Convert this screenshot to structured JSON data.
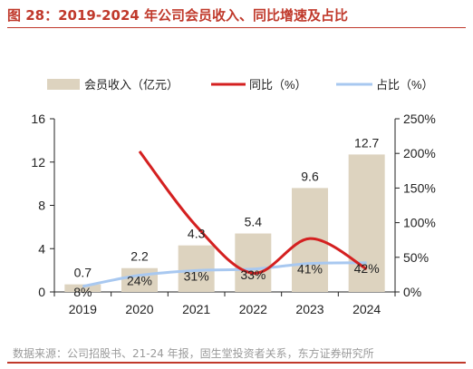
{
  "header": {
    "title": "图 28：2019-2024 年公司会员收入、同比增速及占比"
  },
  "footer": {
    "source": "数据来源：公司招股书、21-24 年报，固生堂投资者关系，东方证券研究所"
  },
  "colors": {
    "title": "#c0392b",
    "bars": "#ddd3bf",
    "yoy_line": "#d42020",
    "share_line": "#a8c8f0"
  },
  "chart_data": {
    "type": "bar",
    "categories": [
      "2019",
      "2020",
      "2021",
      "2022",
      "2023",
      "2024"
    ],
    "series": [
      {
        "name": "会员收入（亿元）",
        "type": "bar",
        "axis": "left",
        "values": [
          0.7,
          2.2,
          4.3,
          5.4,
          9.6,
          12.7
        ],
        "labels": [
          "0.7",
          "2.2",
          "4.3",
          "5.4",
          "9.6",
          "12.7"
        ]
      },
      {
        "name": "同比（%）",
        "type": "line",
        "axis": "right",
        "values": [
          null,
          203,
          95,
          27,
          77,
          33
        ]
      },
      {
        "name": "占比（%）",
        "type": "line",
        "axis": "right",
        "values": [
          8,
          24,
          31,
          33,
          41,
          42
        ],
        "labels": [
          "8%",
          "24%",
          "31%",
          "33%",
          "41%",
          "42%"
        ]
      }
    ],
    "y_left": {
      "min": 0,
      "max": 16,
      "ticks": [
        "0",
        "4",
        "8",
        "12",
        "16"
      ]
    },
    "y_right": {
      "min": 0,
      "max": 250,
      "ticks": [
        "0%",
        "50%",
        "100%",
        "150%",
        "200%",
        "250%"
      ]
    },
    "legend_position": "top",
    "grid": false
  }
}
